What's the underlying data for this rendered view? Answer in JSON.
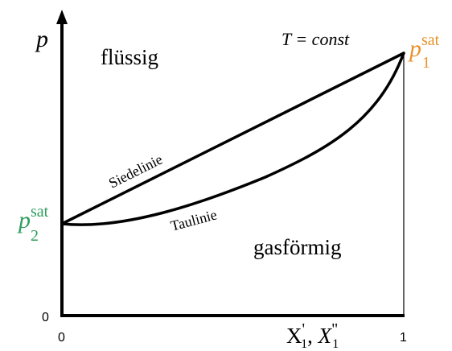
{
  "colors": {
    "line": "#000000",
    "p1_label": "#e8922a",
    "p2_label": "#2f9e5e"
  },
  "axes": {
    "y_label": "p",
    "y_zero_tick": "0",
    "x_zero_tick": "0",
    "x_one_tick": "1",
    "x_label_main": "X",
    "x_label_sub": "1",
    "x_label_prime1": "'",
    "x_label_sep": ", ",
    "x_label_main2": "X",
    "x_label_sub2": "1",
    "x_label_prime2": "\""
  },
  "labels": {
    "temperature_condition": "T = const",
    "region_liquid": "flüssig",
    "region_gas": "gasförmig",
    "bubble_line": "Siedelinie",
    "dew_line": "Taulinie"
  },
  "saturation_pressures": {
    "p1": {
      "base": "p",
      "sup": "sat",
      "sub": "1"
    },
    "p2": {
      "base": "p",
      "sup": "sat",
      "sub": "2"
    }
  }
}
